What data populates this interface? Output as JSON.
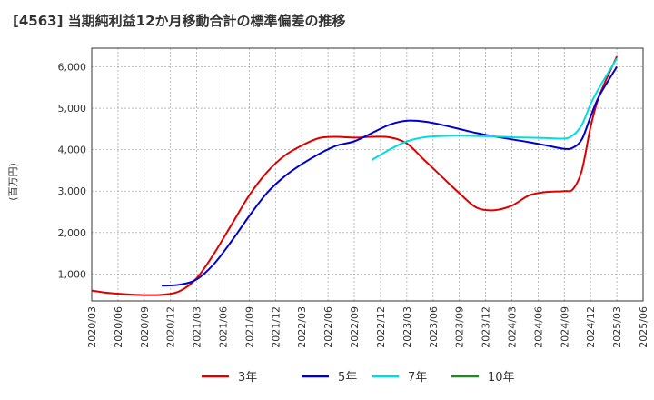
{
  "chart_data": {
    "type": "line",
    "title": "[4563]  当期純利益12か月移動合計の標準偏差の推移",
    "ylabel": "(百万円)",
    "xlabel": "",
    "x_ticks": [
      "2020/03",
      "2020/06",
      "2020/09",
      "2020/12",
      "2021/03",
      "2021/06",
      "2021/09",
      "2021/12",
      "2022/03",
      "2022/06",
      "2022/09",
      "2022/12",
      "2023/03",
      "2023/06",
      "2023/09",
      "2023/12",
      "2024/03",
      "2024/06",
      "2024/09",
      "2024/12",
      "2025/03",
      "2025/06"
    ],
    "y_ticks": [
      1000,
      2000,
      3000,
      4000,
      5000,
      6000
    ],
    "y_tick_labels": [
      "1,000",
      "2,000",
      "3,000",
      "4,000",
      "5,000",
      "6,000"
    ],
    "ylim": [
      350,
      6450
    ],
    "grid": true,
    "legend_position": "bottom",
    "series": [
      {
        "name": "3年",
        "color": "#dd0000",
        "x": [
          "2020/03",
          "2020/05",
          "2020/07",
          "2020/09",
          "2020/11",
          "2021/01",
          "2021/03",
          "2021/05",
          "2021/07",
          "2021/09",
          "2021/11",
          "2022/01",
          "2022/03",
          "2022/05",
          "2022/07",
          "2022/09",
          "2022/11",
          "2023/01",
          "2023/03",
          "2023/05",
          "2023/07",
          "2023/09",
          "2023/11",
          "2024/01",
          "2024/03",
          "2024/05",
          "2024/07",
          "2024/09",
          "2024/10",
          "2024/11",
          "2024/12",
          "2025/01",
          "2025/03"
        ],
        "y": [
          600,
          540,
          510,
          490,
          500,
          580,
          900,
          1500,
          2200,
          2900,
          3450,
          3850,
          4100,
          4280,
          4310,
          4290,
          4310,
          4300,
          4150,
          3750,
          3350,
          2950,
          2600,
          2540,
          2650,
          2900,
          2980,
          3000,
          3050,
          3500,
          4550,
          5300,
          6250
        ]
      },
      {
        "name": "5年",
        "color": "#0000cc",
        "x": [
          "2020/11",
          "2021/01",
          "2021/03",
          "2021/05",
          "2021/07",
          "2021/09",
          "2021/11",
          "2022/01",
          "2022/03",
          "2022/05",
          "2022/07",
          "2022/09",
          "2022/11",
          "2023/01",
          "2023/03",
          "2023/05",
          "2023/07",
          "2023/09",
          "2023/11",
          "2024/01",
          "2024/03",
          "2024/05",
          "2024/07",
          "2024/09",
          "2024/10",
          "2024/11",
          "2024/12",
          "2025/01",
          "2025/03"
        ],
        "y": [
          720,
          740,
          870,
          1250,
          1800,
          2400,
          2950,
          3350,
          3650,
          3900,
          4100,
          4200,
          4400,
          4600,
          4700,
          4680,
          4600,
          4500,
          4400,
          4320,
          4250,
          4180,
          4100,
          4020,
          4050,
          4250,
          4800,
          5300,
          6000
        ]
      },
      {
        "name": "7年",
        "color": "#00dddd",
        "x": [
          "2022/11",
          "2023/01",
          "2023/03",
          "2023/05",
          "2023/07",
          "2023/09",
          "2023/11",
          "2024/01",
          "2024/03",
          "2024/05",
          "2024/07",
          "2024/09",
          "2024/10",
          "2024/11",
          "2024/12",
          "2025/01",
          "2025/03"
        ],
        "y": [
          3750,
          4000,
          4200,
          4300,
          4330,
          4340,
          4330,
          4320,
          4300,
          4290,
          4280,
          4270,
          4350,
          4600,
          5100,
          5500,
          6200
        ]
      },
      {
        "name": "10年",
        "color": "#228822",
        "x": [],
        "y": []
      }
    ]
  }
}
